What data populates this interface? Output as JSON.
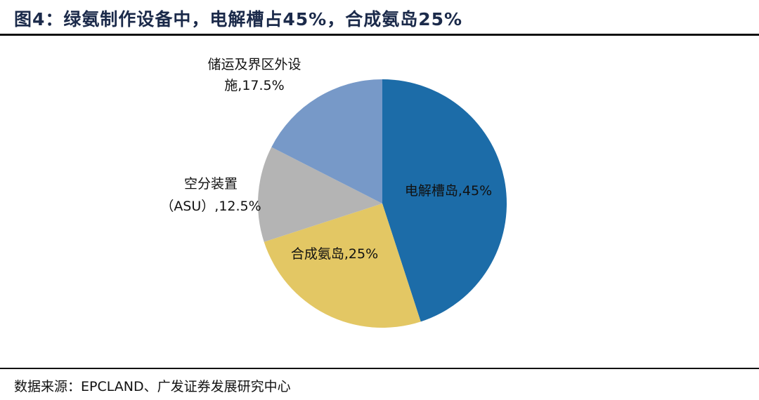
{
  "title": "图4：绿氨制作设备中，电解槽占45%，合成氨岛25%",
  "source": "数据来源：EPCLAND、广发证券发展研究中心",
  "chart_data": {
    "type": "pie",
    "start": "top",
    "direction": "clockwise",
    "slices": [
      {
        "name": "电解槽岛",
        "value": 45,
        "color": "#1c6ca8",
        "label_lines": [
          "电解槽岛,45%"
        ],
        "label_color": "#ffffff"
      },
      {
        "name": "合成氨岛",
        "value": 25,
        "color": "#e3c764",
        "label_lines": [
          "合成氨岛,25%"
        ],
        "label_color": "#111111"
      },
      {
        "name": "空分装置（ASU）",
        "value": 12.5,
        "color": "#b4b4b4",
        "label_lines": [
          "空分装置",
          "（ASU）,12.5%"
        ],
        "label_color": "#111111"
      },
      {
        "name": "储运及界区外设施",
        "value": 17.5,
        "color": "#7799c8",
        "label_lines": [
          "储运及界区外设",
          "施,17.5%"
        ],
        "label_color": "#111111"
      }
    ]
  }
}
